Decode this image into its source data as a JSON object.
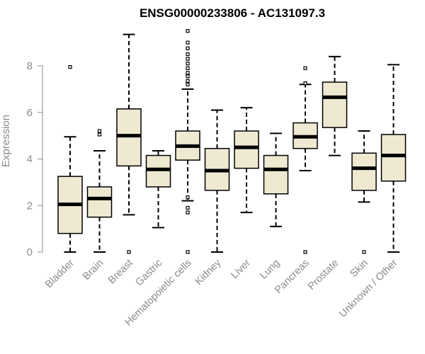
{
  "chart_data": {
    "type": "boxplot",
    "title": "ENSG00000233806 - AC131097.3",
    "xlabel": "",
    "ylabel": "Expression",
    "ylim": [
      0,
      9.5
    ],
    "yticks": [
      0,
      2,
      4,
      6,
      8
    ],
    "box_fill": "#efe9d2",
    "categories": [
      "Bladder",
      "Brain",
      "Breast",
      "Gastric",
      "Hematopoietic cells",
      "Kidney",
      "Liver",
      "Lung",
      "Pancreas",
      "Prostate",
      "Skin",
      "Unknown / Other"
    ],
    "boxes": [
      {
        "name": "Bladder",
        "whisker_low": 0.0,
        "q1": 0.8,
        "median": 2.05,
        "q3": 3.25,
        "whisker_high": 4.95,
        "outliers": [
          7.95
        ]
      },
      {
        "name": "Brain",
        "whisker_low": 0.0,
        "q1": 1.5,
        "median": 2.3,
        "q3": 2.8,
        "whisker_high": 4.35,
        "outliers": [
          5.05,
          5.2
        ]
      },
      {
        "name": "Breast",
        "whisker_low": 1.6,
        "q1": 3.7,
        "median": 5.0,
        "q3": 6.15,
        "whisker_high": 9.35,
        "outliers": [
          0.0
        ]
      },
      {
        "name": "Gastric",
        "whisker_low": 1.05,
        "q1": 2.8,
        "median": 3.55,
        "q3": 4.15,
        "whisker_high": 4.35,
        "outliers": []
      },
      {
        "name": "Hematopoietic cells",
        "whisker_low": 2.2,
        "q1": 3.95,
        "median": 4.55,
        "q3": 5.2,
        "whisker_high": 7.0,
        "outliers": [
          0.0,
          1.7,
          1.9,
          2.35,
          7.2,
          7.35,
          7.55,
          7.7,
          7.9,
          8.1,
          8.3,
          8.5,
          8.75,
          9.0,
          9.5
        ]
      },
      {
        "name": "Kidney",
        "whisker_low": 0.0,
        "q1": 2.65,
        "median": 3.5,
        "q3": 4.45,
        "whisker_high": 6.1,
        "outliers": []
      },
      {
        "name": "Liver",
        "whisker_low": 1.7,
        "q1": 3.6,
        "median": 4.5,
        "q3": 5.2,
        "whisker_high": 6.2,
        "outliers": []
      },
      {
        "name": "Lung",
        "whisker_low": 1.1,
        "q1": 2.5,
        "median": 3.55,
        "q3": 4.15,
        "whisker_high": 5.1,
        "outliers": []
      },
      {
        "name": "Pancreas",
        "whisker_low": 3.5,
        "q1": 4.45,
        "median": 4.95,
        "q3": 5.55,
        "whisker_high": 7.2,
        "outliers": [
          0.0,
          7.9,
          7.25
        ]
      },
      {
        "name": "Prostate",
        "whisker_low": 4.15,
        "q1": 5.35,
        "median": 6.65,
        "q3": 7.3,
        "whisker_high": 8.4,
        "outliers": []
      },
      {
        "name": "Skin",
        "whisker_low": 2.15,
        "q1": 2.65,
        "median": 3.6,
        "q3": 4.25,
        "whisker_high": 5.2,
        "outliers": [
          0.0
        ]
      },
      {
        "name": "Unknown / Other",
        "whisker_low": 0.0,
        "q1": 3.05,
        "median": 4.15,
        "q3": 5.05,
        "whisker_high": 8.05,
        "outliers": []
      }
    ]
  }
}
